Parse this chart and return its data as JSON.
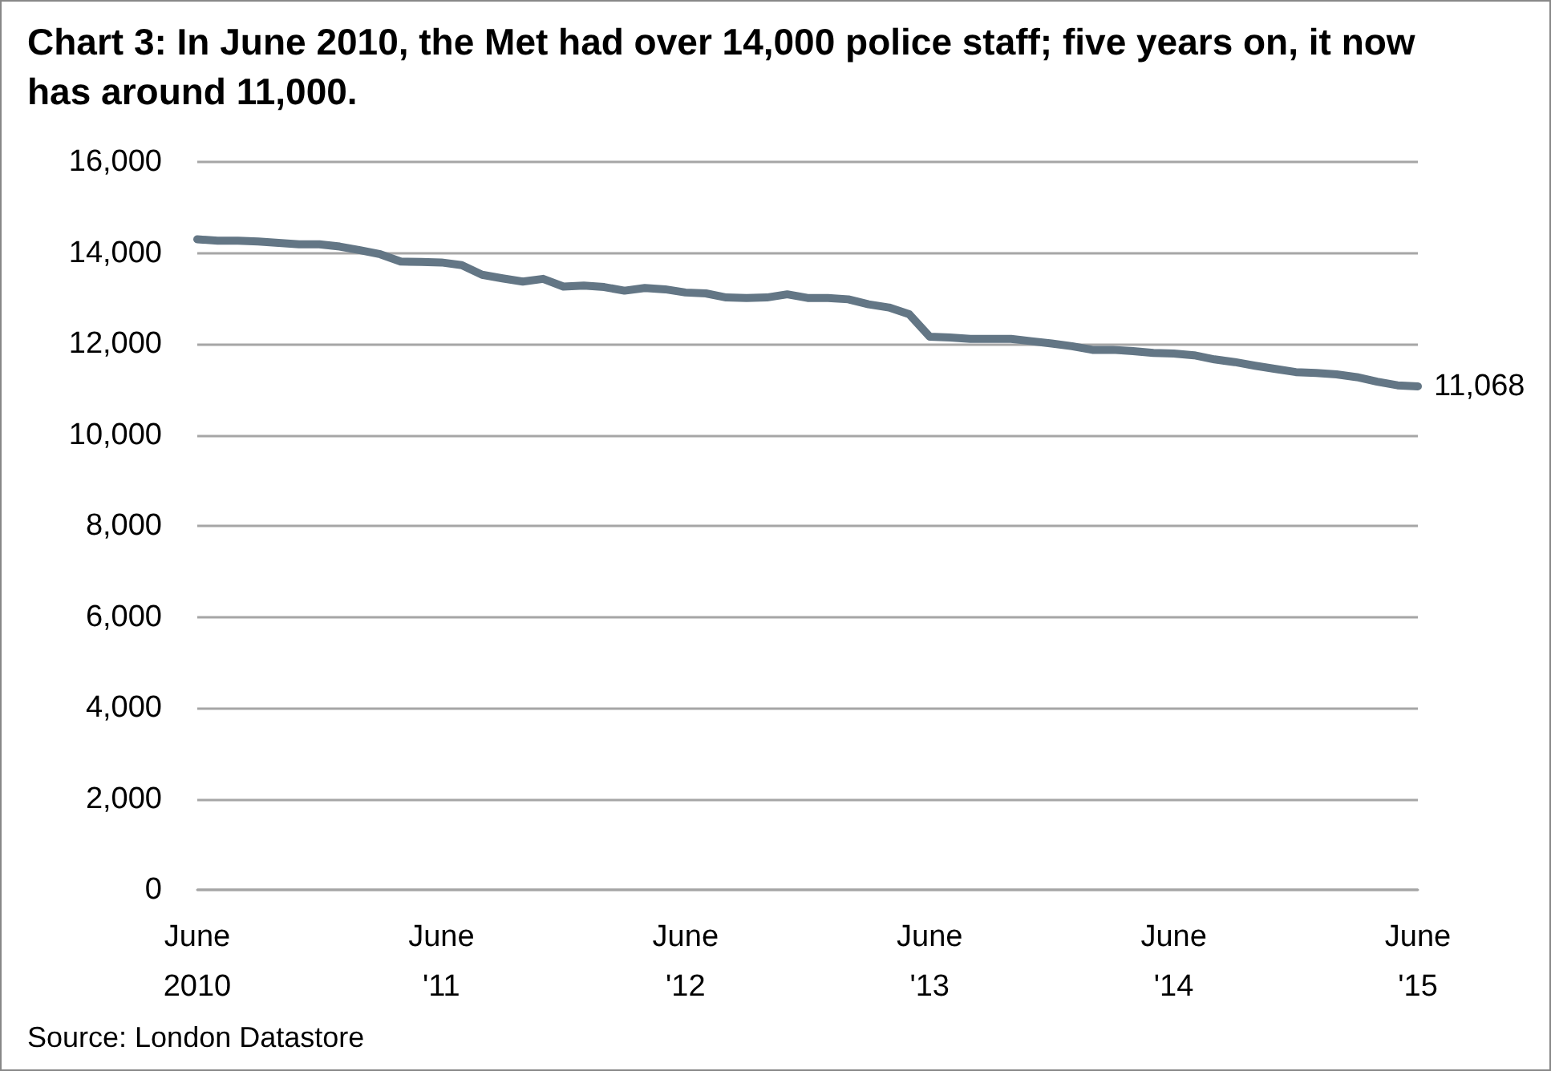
{
  "chart_data": {
    "type": "line",
    "title": "Chart 3: In June 2010, the Met had over 14,000 police staff; five years on, it now has around 11,000.",
    "categories": [
      "June\n2010",
      null,
      null,
      null,
      null,
      null,
      null,
      null,
      null,
      null,
      null,
      null,
      "June\n'11",
      null,
      null,
      null,
      null,
      null,
      null,
      null,
      null,
      null,
      null,
      null,
      "June\n'12",
      null,
      null,
      null,
      null,
      null,
      null,
      null,
      null,
      null,
      null,
      null,
      "June\n'13",
      null,
      null,
      null,
      null,
      null,
      null,
      null,
      null,
      null,
      null,
      null,
      "June\n'14",
      null,
      null,
      null,
      null,
      null,
      null,
      null,
      null,
      null,
      null,
      null,
      "June\n'15"
    ],
    "series": [
      {
        "color": "#637685",
        "values": [
          14300,
          14270,
          14270,
          14250,
          14220,
          14190,
          14190,
          14140,
          14060,
          13970,
          13810,
          13800,
          13790,
          13730,
          13520,
          13440,
          13370,
          13430,
          13260,
          13280,
          13250,
          13170,
          13230,
          13200,
          13130,
          13110,
          13020,
          13010,
          13020,
          13090,
          13010,
          13010,
          12980,
          12870,
          12800,
          12650,
          12160,
          12140,
          12110,
          12110,
          12110,
          12060,
          12010,
          11950,
          11870,
          11870,
          11840,
          11800,
          11790,
          11750,
          11660,
          11600,
          11520,
          11450,
          11380,
          11360,
          11330,
          11270,
          11170,
          11090,
          11068
        ],
        "value_labels": [
          null,
          null,
          null,
          null,
          null,
          null,
          null,
          null,
          null,
          null,
          null,
          null,
          null,
          null,
          null,
          null,
          null,
          null,
          null,
          null,
          null,
          null,
          null,
          null,
          null,
          null,
          null,
          null,
          null,
          null,
          null,
          null,
          null,
          null,
          null,
          null,
          null,
          null,
          null,
          null,
          null,
          null,
          null,
          null,
          null,
          null,
          null,
          null,
          null,
          null,
          null,
          null,
          null,
          null,
          null,
          null,
          null,
          null,
          null,
          null,
          "11,068"
        ]
      }
    ],
    "ylim": [
      0,
      16000
    ],
    "yticks": [
      0,
      {
        "value": 2000,
        "label": "2,000"
      },
      {
        "value": 4000,
        "label": "4,000"
      },
      {
        "value": 6000,
        "label": "6,000"
      },
      {
        "value": 8000,
        "label": "8,000"
      },
      {
        "value": 10000,
        "label": "10,000"
      },
      {
        "value": 12000,
        "label": "12,000"
      },
      {
        "value": 14000,
        "label": "14,000"
      },
      {
        "value": 16000,
        "label": "16,000"
      }
    ],
    "grid": "y",
    "marker": "none",
    "line_style": "solid",
    "annotations": [
      "Source: London Datastore"
    ]
  }
}
